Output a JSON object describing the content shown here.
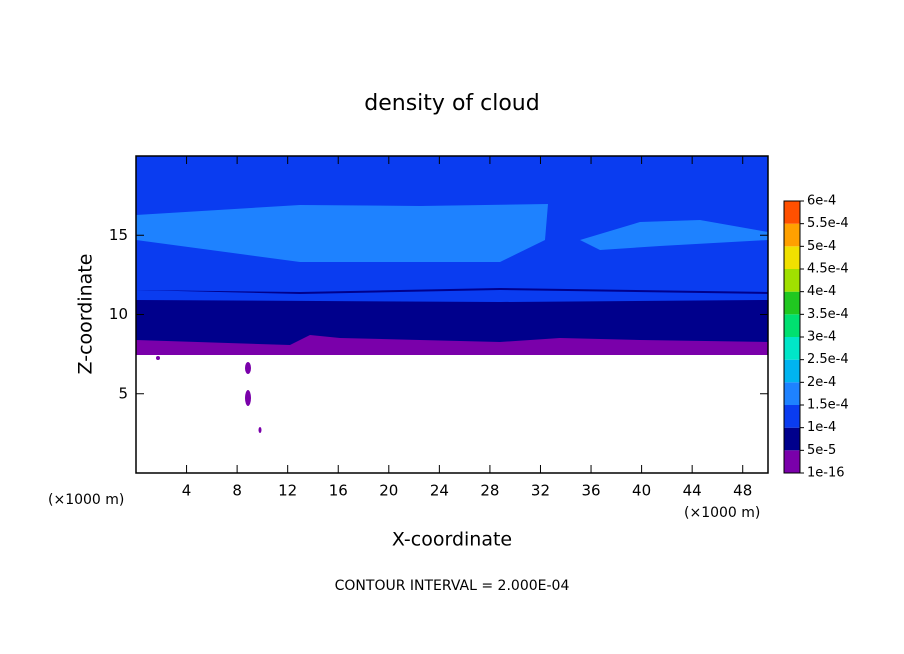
{
  "chart_data": {
    "type": "contour",
    "title": "density of cloud",
    "xlabel": "X-coordinate",
    "ylabel": "Z-coordinate",
    "x_unit": "(×1000 m)",
    "footer": "CONTOUR INTERVAL = 2.000E-04",
    "xlim": [
      0,
      50
    ],
    "ylim": [
      0,
      20
    ],
    "xticks": [
      4,
      8,
      12,
      16,
      20,
      24,
      28,
      32,
      36,
      40,
      44,
      48
    ],
    "yticks": [
      5,
      10,
      15
    ],
    "colorbar": {
      "levels": [
        {
          "value": 1e-16,
          "label": "1e-16"
        },
        {
          "value": 5e-05,
          "label": "5e-5"
        },
        {
          "value": 0.0001,
          "label": "1e-4"
        },
        {
          "value": 0.00015,
          "label": "1.5e-4"
        },
        {
          "value": 0.0002,
          "label": "2e-4"
        },
        {
          "value": 0.00025,
          "label": "2.5e-4"
        },
        {
          "value": 0.0003,
          "label": "3e-4"
        },
        {
          "value": 0.00035,
          "label": "3.5e-4"
        },
        {
          "value": 0.0004,
          "label": "4e-4"
        },
        {
          "value": 0.00045,
          "label": "4.5e-4"
        },
        {
          "value": 0.0005,
          "label": "5e-4"
        },
        {
          "value": 0.00055,
          "label": "5.5e-4"
        },
        {
          "value": 0.0006,
          "label": "6e-4"
        }
      ],
      "colors": [
        "#7a00aa",
        "#00008c",
        "#0a3cf0",
        "#1e82ff",
        "#00b4f0",
        "#00e6c8",
        "#00e070",
        "#20c820",
        "#a0e000",
        "#f0e000",
        "#ffa000",
        "#ff5000",
        "#ff1010",
        "#ff8c8c"
      ]
    }
  }
}
